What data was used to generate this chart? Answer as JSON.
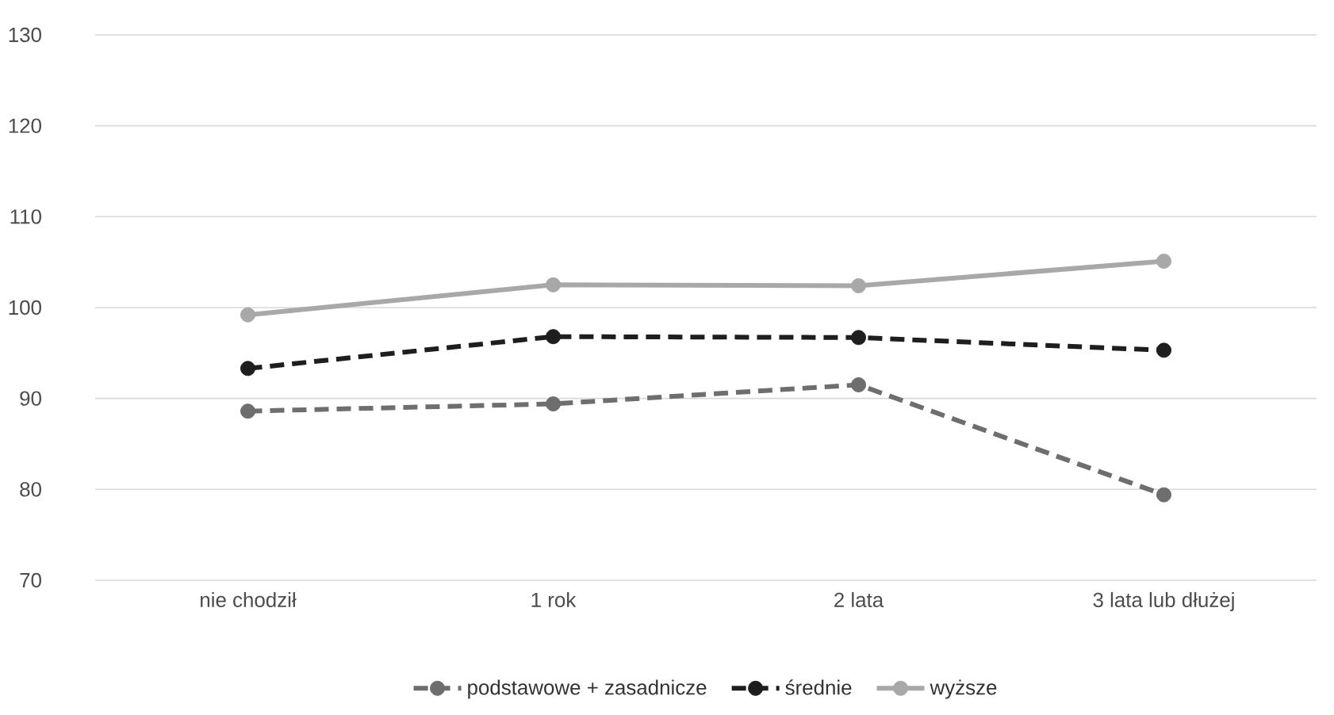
{
  "chart_data": {
    "type": "line",
    "categories": [
      "nie chodził",
      "1 rok",
      "2 lata",
      "3 lata lub dłużej"
    ],
    "series": [
      {
        "name": "podstawowe + zasadnicze",
        "color": "#6e6e6e",
        "line_style": "dashed",
        "values": [
          88.6,
          89.4,
          91.5,
          79.4
        ]
      },
      {
        "name": "średnie",
        "color": "#1e1e1e",
        "line_style": "dashed",
        "values": [
          93.3,
          96.8,
          96.7,
          95.3
        ]
      },
      {
        "name": "wyższe",
        "color": "#a8a8a8",
        "line_style": "solid",
        "values": [
          99.2,
          102.5,
          102.4,
          105.1
        ]
      }
    ],
    "ylim": [
      70,
      130
    ],
    "yticks": [
      70,
      80,
      90,
      100,
      110,
      120,
      130
    ],
    "grid": "y",
    "legend": "bottom",
    "marker": "circle"
  }
}
